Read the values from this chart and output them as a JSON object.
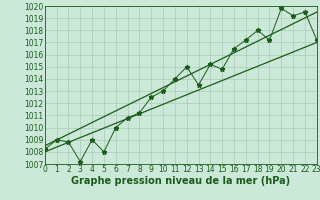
{
  "xlabel": "Graphe pression niveau de la mer (hPa)",
  "bg_color": "#cce8d8",
  "grid_color": "#aaccb8",
  "line_color": "#1a5c1a",
  "ylim": [
    1007,
    1020
  ],
  "xlim": [
    0,
    23
  ],
  "yticks": [
    1007,
    1008,
    1009,
    1010,
    1011,
    1012,
    1013,
    1014,
    1015,
    1016,
    1017,
    1018,
    1019,
    1020
  ],
  "xticks": [
    0,
    1,
    2,
    3,
    4,
    5,
    6,
    7,
    8,
    9,
    10,
    11,
    12,
    13,
    14,
    15,
    16,
    17,
    18,
    19,
    20,
    21,
    22,
    23
  ],
  "pressure_data": [
    1008.2,
    1009.0,
    1008.8,
    1007.2,
    1009.0,
    1008.0,
    1010.0,
    1010.8,
    1011.2,
    1012.5,
    1013.0,
    1014.0,
    1015.0,
    1013.5,
    1015.2,
    1014.8,
    1016.5,
    1017.2,
    1018.0,
    1017.2,
    1019.8,
    1019.2,
    1019.5,
    1017.2
  ],
  "trend_low": [
    1008.0,
    1017.0
  ],
  "trend_high": [
    1008.5,
    1019.5
  ],
  "trend_x": [
    0,
    23
  ],
  "marker": "*",
  "marker_size": 3.5,
  "font_size_label": 6.5,
  "font_size_tick": 5.5,
  "font_size_xlabel": 7.0
}
